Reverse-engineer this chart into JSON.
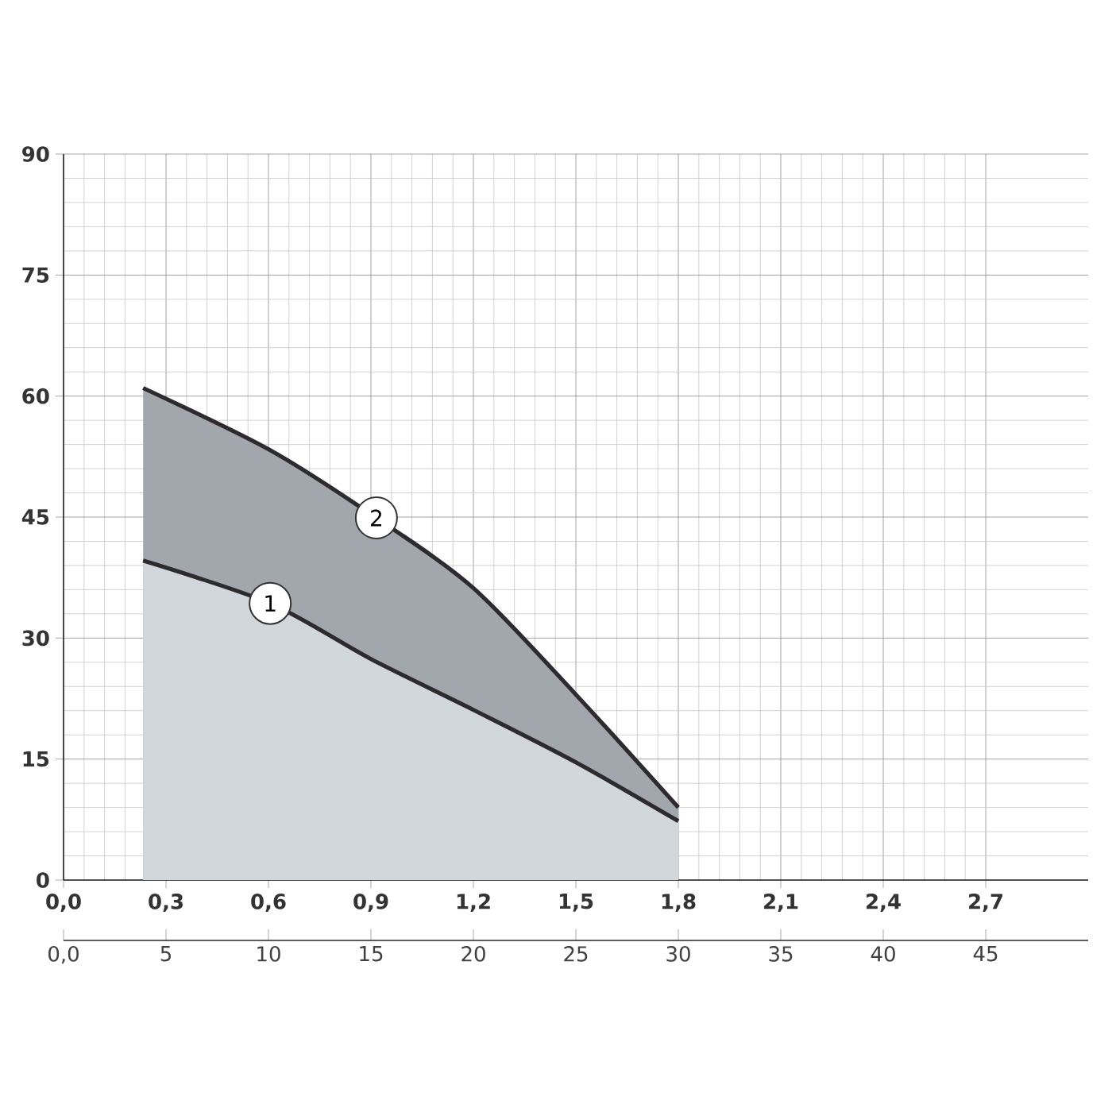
{
  "chart_data": {
    "type": "area",
    "series": [
      {
        "name": "1",
        "color": "#d2d7dc",
        "x": [
          0.233,
          0.605,
          0.9,
          1.2,
          1.5,
          1.8
        ],
        "values": [
          39.6,
          34.3,
          27.4,
          21.1,
          14.6,
          7.3
        ]
      },
      {
        "name": "2",
        "color": "#a2a6ad",
        "x": [
          0.233,
          0.605,
          0.916,
          1.2,
          1.5,
          1.8
        ],
        "values": [
          61.0,
          53.3,
          44.9,
          36.2,
          23.0,
          9.0
        ]
      }
    ],
    "xlim": [
      0,
      3.0
    ],
    "xticks": [
      {
        "value": 0,
        "label": "0,0"
      },
      {
        "value": 0.3,
        "label": "0,3"
      },
      {
        "value": 0.6,
        "label": "0,6"
      },
      {
        "value": 0.9,
        "label": "0,9"
      },
      {
        "value": 1.2,
        "label": "1,2"
      },
      {
        "value": 1.5,
        "label": "1,5"
      },
      {
        "value": 1.8,
        "label": "1,8"
      },
      {
        "value": 2.1,
        "label": "2,1"
      },
      {
        "value": 2.4,
        "label": "2,4"
      },
      {
        "value": 2.7,
        "label": "2,7"
      }
    ],
    "ylim": [
      0,
      90
    ],
    "yticks": [
      0,
      15,
      30,
      45,
      60,
      75,
      90
    ],
    "x2lim": [
      0,
      50
    ],
    "x2ticks": [
      {
        "value": 0,
        "label": "0,0"
      },
      5,
      10,
      15,
      20,
      25,
      30,
      35,
      40,
      45
    ],
    "grid": true,
    "legend": "center left"
  }
}
